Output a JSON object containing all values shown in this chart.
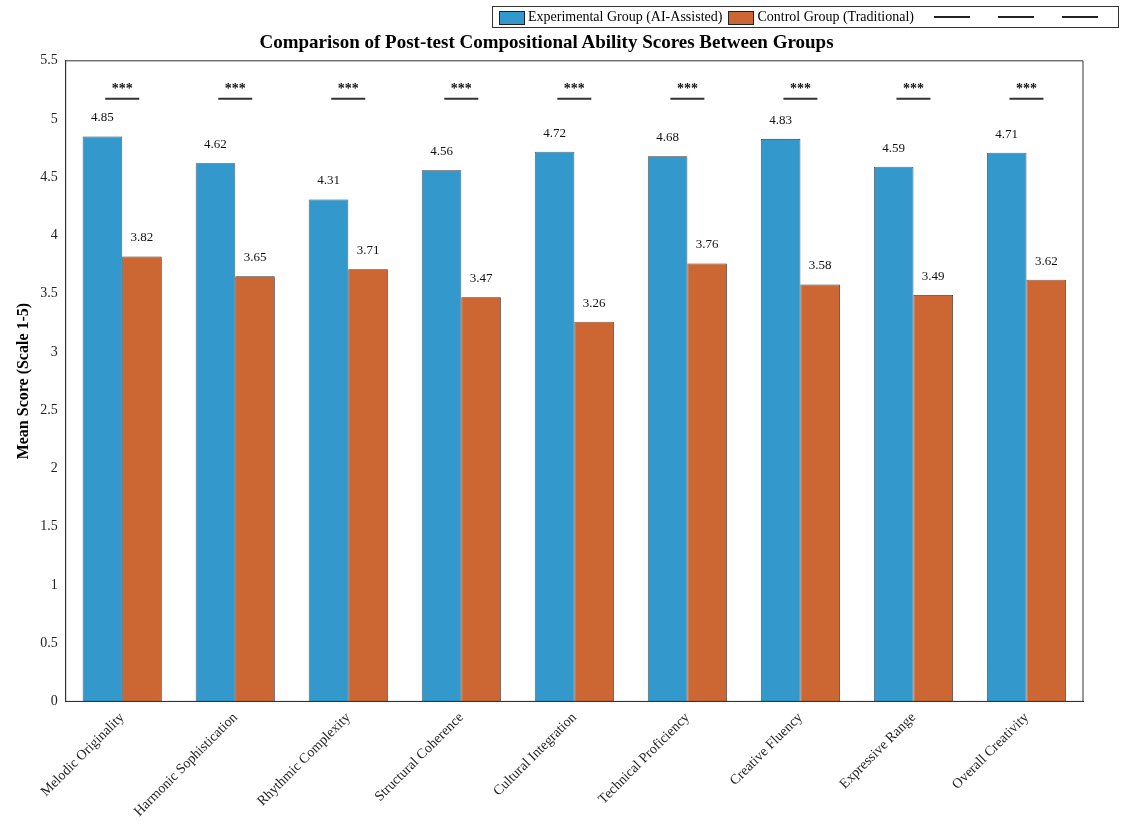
{
  "chart_data": {
    "type": "bar",
    "title": "Comparison of Post-test Compositional Ability Scores Between Groups",
    "ylabel": "Mean Score (Scale 1-5)",
    "categories": [
      "Melodic Originality",
      "Harmonic Sophistication",
      "Rhythmic Complexity",
      "Structural Coherence",
      "Cultural Integration",
      "Technical Proficiency",
      "Creative Fluency",
      "Expressive Range",
      "Overall Creativity"
    ],
    "series": [
      {
        "name": "Experimental Group (AI-Assisted)",
        "color": "#3399cc",
        "values": [
          4.85,
          4.62,
          4.31,
          4.56,
          4.72,
          4.68,
          4.83,
          4.59,
          4.71
        ]
      },
      {
        "name": "Control Group (Traditional)",
        "color": "#cc6633",
        "values": [
          3.82,
          3.65,
          3.71,
          3.47,
          3.26,
          3.76,
          3.58,
          3.49,
          3.62
        ]
      }
    ],
    "ylim": [
      0,
      5.5
    ],
    "yticks": [
      0,
      0.5,
      1,
      1.5,
      2,
      2.5,
      3,
      3.5,
      4,
      4.5,
      5,
      5.5
    ],
    "data_labels": true,
    "grid": false,
    "legend": "top right",
    "annotations": [
      "***",
      "***",
      "***",
      "***",
      "***",
      "***",
      "***",
      "***",
      "***"
    ]
  }
}
